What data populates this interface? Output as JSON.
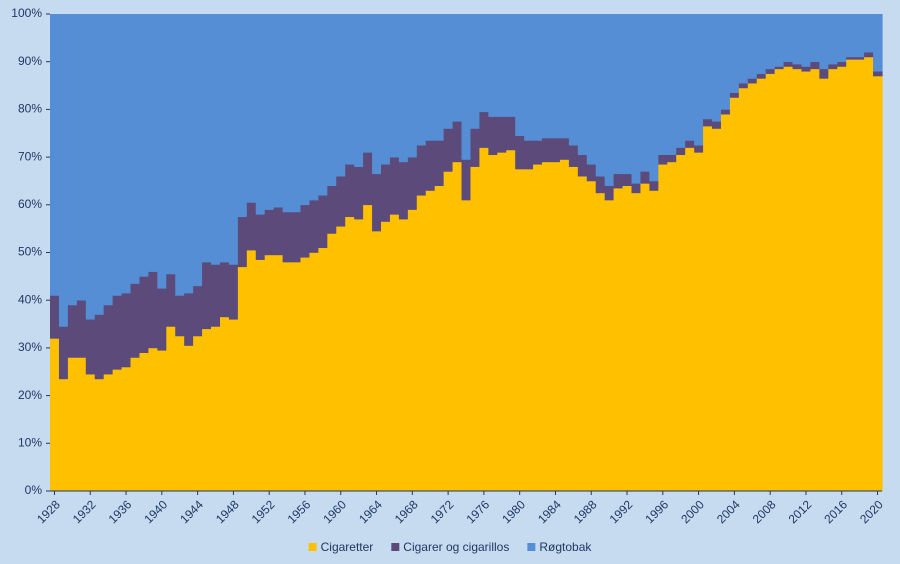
{
  "chart_data": {
    "type": "stacked-step-area",
    "x": [
      1928,
      1929,
      1930,
      1931,
      1932,
      1933,
      1934,
      1935,
      1936,
      1937,
      1938,
      1939,
      1940,
      1941,
      1942,
      1943,
      1944,
      1945,
      1946,
      1947,
      1948,
      1949,
      1950,
      1951,
      1952,
      1953,
      1954,
      1955,
      1956,
      1957,
      1958,
      1959,
      1960,
      1961,
      1962,
      1963,
      1964,
      1965,
      1966,
      1967,
      1968,
      1969,
      1970,
      1971,
      1972,
      1973,
      1974,
      1975,
      1976,
      1977,
      1978,
      1979,
      1980,
      1981,
      1982,
      1983,
      1984,
      1985,
      1986,
      1987,
      1988,
      1989,
      1990,
      1991,
      1992,
      1993,
      1994,
      1995,
      1996,
      1997,
      1998,
      1999,
      2000,
      2001,
      2002,
      2003,
      2004,
      2005,
      2006,
      2007,
      2008,
      2009,
      2010,
      2011,
      2012,
      2013,
      2014,
      2015,
      2016,
      2017,
      2018,
      2019,
      2020
    ],
    "xlim": [
      1928,
      2021
    ],
    "xticks": [
      1928,
      1932,
      1936,
      1940,
      1944,
      1948,
      1952,
      1956,
      1960,
      1964,
      1968,
      1972,
      1976,
      1980,
      1984,
      1988,
      1992,
      1996,
      2000,
      2004,
      2008,
      2012,
      2016,
      2020
    ],
    "ylim": [
      0,
      100
    ],
    "yticks": [
      {
        "value": 0,
        "label": "0%"
      },
      {
        "value": 10,
        "label": "10%"
      },
      {
        "value": 20,
        "label": "20%"
      },
      {
        "value": 30,
        "label": "30%"
      },
      {
        "value": 40,
        "label": "40%"
      },
      {
        "value": 50,
        "label": "50%"
      },
      {
        "value": 60,
        "label": "60%"
      },
      {
        "value": 70,
        "label": "70%"
      },
      {
        "value": 80,
        "label": "80%"
      },
      {
        "value": 90,
        "label": "90%"
      },
      {
        "value": 100,
        "label": "100%"
      }
    ],
    "legend": "bottom",
    "series": [
      {
        "name": "Cigaretter",
        "color": "#ffc000",
        "values": [
          32,
          23.5,
          28,
          28,
          24.5,
          23.5,
          24.5,
          25.5,
          26,
          28,
          29,
          30,
          29.5,
          34.5,
          32.5,
          30.5,
          32.5,
          34,
          34.5,
          36.5,
          36,
          47,
          50.5,
          48.5,
          49.5,
          49.5,
          48,
          48,
          49,
          50,
          51,
          54,
          55.5,
          57.5,
          57,
          60,
          54.5,
          56.5,
          58,
          57,
          59,
          62,
          63,
          64,
          67,
          69,
          61,
          68,
          72,
          70.5,
          71,
          71.5,
          67.5,
          67.5,
          68.5,
          69,
          69,
          69.5,
          68,
          66,
          65,
          62.5,
          61,
          63.5,
          64,
          62.5,
          64.5,
          63,
          68.5,
          69,
          70.5,
          72,
          71,
          76.5,
          76,
          79,
          82.5,
          84.5,
          85.5,
          86.5,
          87.5,
          88.5,
          89,
          88.5,
          88,
          88.5,
          86.5,
          88.5,
          89,
          90.5,
          90.5,
          91,
          87
        ]
      },
      {
        "name": "Cigarer og cigarillos",
        "color": "#5b4a7a",
        "values": [
          9,
          11,
          11,
          12,
          11.5,
          13.5,
          14.5,
          15.5,
          15.5,
          15.5,
          16,
          16,
          13,
          11,
          8.5,
          11,
          10.5,
          14,
          13,
          11.5,
          11.5,
          10.5,
          10,
          9.5,
          9.5,
          10,
          10.5,
          10.5,
          11,
          11,
          11,
          10,
          10.5,
          11,
          11,
          11,
          12,
          12,
          12,
          12,
          11,
          10.5,
          10.5,
          9.5,
          9,
          8.5,
          8.5,
          8,
          7.5,
          8,
          7.5,
          7,
          7,
          6,
          5,
          5,
          5,
          4.5,
          4.5,
          4.5,
          3.5,
          3.5,
          3,
          3,
          2.5,
          2,
          2.5,
          2,
          2,
          1.5,
          1.5,
          1.5,
          1.5,
          1.5,
          1.5,
          1,
          1,
          1,
          1,
          1,
          1,
          0.5,
          1,
          1,
          1,
          1.5,
          2,
          1,
          1,
          0.5,
          0.5,
          1,
          1
        ]
      },
      {
        "name": "Røgtobak",
        "color": "#558ed5",
        "values": [
          59,
          65.5,
          61,
          60,
          64,
          63,
          61,
          59,
          58.5,
          56.5,
          55,
          54,
          57.5,
          54.5,
          59,
          58.5,
          57,
          52,
          52.5,
          52,
          52.5,
          42.5,
          39.5,
          42,
          41,
          40.5,
          41.5,
          41.5,
          40,
          39,
          38,
          36,
          34,
          31.5,
          32,
          29,
          33.5,
          31.5,
          30,
          31,
          30,
          27.5,
          26.5,
          26.5,
          24,
          22.5,
          30.5,
          24,
          20.5,
          21.5,
          21.5,
          21.5,
          25.5,
          26.5,
          26.5,
          26,
          26,
          26,
          27.5,
          29.5,
          31.5,
          34,
          36,
          33.5,
          33.5,
          35.5,
          33,
          35,
          29.5,
          29.5,
          28,
          26.5,
          27.5,
          22,
          22.5,
          20,
          16.5,
          14.5,
          13.5,
          12.5,
          11.5,
          11,
          10,
          10.5,
          11,
          10,
          11.5,
          10.5,
          10,
          9,
          9,
          8,
          12
        ]
      }
    ]
  }
}
